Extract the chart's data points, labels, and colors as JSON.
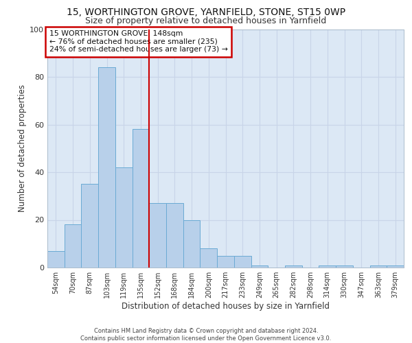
{
  "title_line1": "15, WORTHINGTON GROVE, YARNFIELD, STONE, ST15 0WP",
  "title_line2": "Size of property relative to detached houses in Yarnfield",
  "xlabel": "Distribution of detached houses by size in Yarnfield",
  "ylabel": "Number of detached properties",
  "categories": [
    "54sqm",
    "70sqm",
    "87sqm",
    "103sqm",
    "119sqm",
    "135sqm",
    "152sqm",
    "168sqm",
    "184sqm",
    "200sqm",
    "217sqm",
    "233sqm",
    "249sqm",
    "265sqm",
    "282sqm",
    "298sqm",
    "314sqm",
    "330sqm",
    "347sqm",
    "363sqm",
    "379sqm"
  ],
  "values": [
    7,
    18,
    35,
    84,
    42,
    58,
    27,
    27,
    20,
    8,
    5,
    5,
    1,
    0,
    1,
    0,
    1,
    1,
    0,
    1,
    1
  ],
  "bar_color": "#b8d0ea",
  "bar_edge_color": "#6aaad4",
  "vline_color": "#cc0000",
  "annotation_text": "15 WORTHINGTON GROVE: 148sqm\n← 76% of detached houses are smaller (235)\n24% of semi-detached houses are larger (73) →",
  "annotation_box_color": "#ffffff",
  "annotation_box_edge": "#cc0000",
  "ylim": [
    0,
    100
  ],
  "grid_color": "#c8d4e8",
  "background_color": "#dce8f5",
  "footer_text": "Contains HM Land Registry data © Crown copyright and database right 2024.\nContains public sector information licensed under the Open Government Licence v3.0.",
  "title_fontsize": 10,
  "subtitle_fontsize": 9,
  "tick_fontsize": 7,
  "ylabel_fontsize": 8.5,
  "xlabel_fontsize": 8.5,
  "annotation_fontsize": 7.8
}
